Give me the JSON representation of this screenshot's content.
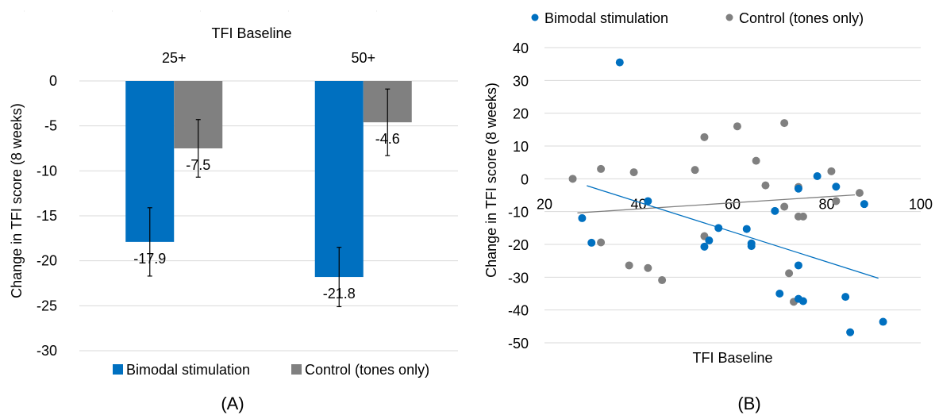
{
  "colors": {
    "bimodal": "#0070C0",
    "control": "#808080",
    "gridline": "#D9D9D9",
    "errorbar": "#000000"
  },
  "chart_data": [
    {
      "panel": "(A)",
      "type": "bar",
      "title": "TFI Baseline",
      "categories": [
        "25+",
        "50+"
      ],
      "ylabel": "Change in TFI score (8 weeks)",
      "ylim": [
        -30,
        0
      ],
      "yticks": [
        0,
        -5,
        -10,
        -15,
        -20,
        -25,
        -30
      ],
      "grid": true,
      "legend_position": "bottom",
      "series": [
        {
          "name": "Bimodal stimulation",
          "color": "#0070C0",
          "values": [
            -17.9,
            -21.8
          ],
          "labels": [
            "-17.9",
            "-21.8"
          ],
          "error": [
            3.8,
            3.3
          ]
        },
        {
          "name": "Control (tones only)",
          "color": "#808080",
          "values": [
            -7.5,
            -4.6
          ],
          "labels": [
            "-7.5",
            "-4.6"
          ],
          "error": [
            3.2,
            3.7
          ]
        }
      ]
    },
    {
      "panel": "(B)",
      "type": "scatter",
      "xlabel": "TFI Baseline",
      "ylabel": "Change in TFI score (8 weeks)",
      "xlim": [
        20,
        100
      ],
      "ylim": [
        -50,
        40
      ],
      "xticks": [
        20,
        40,
        60,
        80,
        100
      ],
      "yticks": [
        40,
        30,
        20,
        10,
        0,
        -10,
        -20,
        -30,
        -40,
        -50
      ],
      "grid": true,
      "legend_position": "top",
      "series": [
        {
          "name": "Bimodal stimulation",
          "color": "#0070C0",
          "points": [
            [
              28,
              -12
            ],
            [
              30,
              -19.5
            ],
            [
              36,
              35.5
            ],
            [
              42,
              -6.8
            ],
            [
              54,
              -20.7
            ],
            [
              55,
              -18.8
            ],
            [
              57,
              -15
            ],
            [
              63,
              -15.3
            ],
            [
              64,
              -19.7
            ],
            [
              64,
              -20.5
            ],
            [
              69,
              -9.8
            ],
            [
              70,
              -35
            ],
            [
              74,
              -3
            ],
            [
              74,
              -26.4
            ],
            [
              74,
              -36.6
            ],
            [
              75,
              -37.3
            ],
            [
              78,
              0.8
            ],
            [
              82,
              -2.4
            ],
            [
              84,
              -36
            ],
            [
              85,
              -46.8
            ],
            [
              88,
              -7.7
            ],
            [
              92,
              -43.6
            ]
          ],
          "trendline": [
            [
              29,
              -2.1
            ],
            [
              91,
              -30.3
            ]
          ]
        },
        {
          "name": "Control (tones only)",
          "color": "#808080",
          "points": [
            [
              26,
              0
            ],
            [
              32,
              3
            ],
            [
              32,
              -19.4
            ],
            [
              38,
              -26.4
            ],
            [
              39,
              2
            ],
            [
              42,
              -27.2
            ],
            [
              45,
              -30.9
            ],
            [
              52,
              2.7
            ],
            [
              54,
              -17.5
            ],
            [
              54,
              12.7
            ],
            [
              61,
              16
            ],
            [
              65,
              5.5
            ],
            [
              67,
              -2
            ],
            [
              71,
              17
            ],
            [
              71,
              -8.5
            ],
            [
              72,
              -28.8
            ],
            [
              73,
              -37.5
            ],
            [
              74,
              -2.5
            ],
            [
              74,
              -11.5
            ],
            [
              75,
              -11.5
            ],
            [
              81,
              2.3
            ],
            [
              82,
              -6.8
            ],
            [
              87,
              -4.3
            ]
          ],
          "trendline": [
            [
              27,
              -10.4
            ],
            [
              86,
              -4.9
            ]
          ]
        }
      ]
    }
  ]
}
